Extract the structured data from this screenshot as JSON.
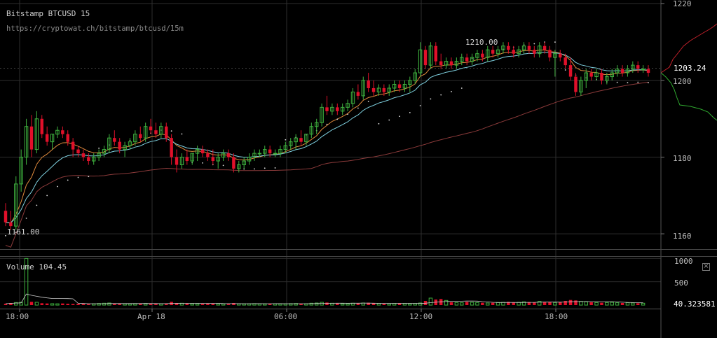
{
  "header": {
    "title": "Bitstamp BTCUSD 15",
    "url": "https://cryptowat.ch/bitstamp/btcusd/15m"
  },
  "volume_panel": {
    "label": "Volume",
    "value": "104.45",
    "close_symbol": "×"
  },
  "colors": {
    "background": "#000000",
    "up": "#3fb33f",
    "down": "#e0102a",
    "grid": "#2e2e2e",
    "ema_fast": "#e08a3c",
    "ema_slow": "#7fd1e0",
    "ma_long": "#8b3a3a",
    "dots": "#dddddd"
  },
  "chart_data": [
    {
      "type": "candlestick",
      "title": "Bitstamp BTCUSD 15",
      "price_axis": {
        "ticks": [
          "1220",
          "1200",
          "1180",
          "1160"
        ],
        "ylim": [
          1156,
          1221
        ],
        "current_price_label": "1203.24"
      },
      "time_axis": {
        "ticks": [
          "18:00",
          "Apr 18",
          "06:00",
          "12:00",
          "18:00"
        ]
      },
      "annotations": {
        "high_label": "1210.00",
        "low_label": "1161.00"
      },
      "grid": true,
      "candles_ohlc": [
        [
          1166,
          1168,
          1162,
          1163
        ],
        [
          1163,
          1166,
          1161,
          1162
        ],
        [
          1162,
          1175,
          1161,
          1173
        ],
        [
          1173,
          1182,
          1171,
          1180
        ],
        [
          1180,
          1190,
          1178,
          1188
        ],
        [
          1188,
          1191,
          1180,
          1182
        ],
        [
          1182,
          1192,
          1181,
          1190
        ],
        [
          1190,
          1191,
          1185,
          1186
        ],
        [
          1186,
          1188,
          1183,
          1184
        ],
        [
          1184,
          1186,
          1182,
          1186
        ],
        [
          1186,
          1188,
          1185,
          1187
        ],
        [
          1187,
          1188,
          1185,
          1186
        ],
        [
          1186,
          1187,
          1183,
          1184
        ],
        [
          1184,
          1185,
          1180,
          1182
        ],
        [
          1182,
          1183,
          1180,
          1181
        ],
        [
          1181,
          1182,
          1179,
          1180
        ],
        [
          1180,
          1181,
          1178,
          1179
        ],
        [
          1179,
          1181,
          1178,
          1180
        ],
        [
          1180,
          1182,
          1179,
          1181
        ],
        [
          1181,
          1183,
          1180,
          1182
        ],
        [
          1182,
          1186,
          1181,
          1185
        ],
        [
          1185,
          1187,
          1183,
          1184
        ],
        [
          1184,
          1185,
          1181,
          1182
        ],
        [
          1182,
          1184,
          1180,
          1183
        ],
        [
          1183,
          1185,
          1182,
          1184
        ],
        [
          1184,
          1187,
          1183,
          1186
        ],
        [
          1186,
          1188,
          1184,
          1185
        ],
        [
          1185,
          1189,
          1184,
          1188
        ],
        [
          1188,
          1190,
          1186,
          1187
        ],
        [
          1187,
          1189,
          1185,
          1186
        ],
        [
          1186,
          1189,
          1185,
          1188
        ],
        [
          1188,
          1189,
          1184,
          1185
        ],
        [
          1185,
          1186,
          1178,
          1180
        ],
        [
          1180,
          1182,
          1176,
          1178
        ],
        [
          1178,
          1181,
          1177,
          1180
        ],
        [
          1180,
          1182,
          1178,
          1179
        ],
        [
          1179,
          1181,
          1178,
          1181
        ],
        [
          1181,
          1183,
          1179,
          1182
        ],
        [
          1182,
          1183,
          1180,
          1181
        ],
        [
          1181,
          1182,
          1179,
          1180
        ],
        [
          1180,
          1182,
          1178,
          1179
        ],
        [
          1179,
          1181,
          1177,
          1180
        ],
        [
          1180,
          1182,
          1179,
          1181
        ],
        [
          1181,
          1182,
          1179,
          1180
        ],
        [
          1180,
          1181,
          1176,
          1177
        ],
        [
          1177,
          1179,
          1176,
          1178
        ],
        [
          1178,
          1180,
          1177,
          1179
        ],
        [
          1179,
          1181,
          1178,
          1180
        ],
        [
          1180,
          1182,
          1179,
          1181
        ],
        [
          1181,
          1182,
          1180,
          1181
        ],
        [
          1181,
          1183,
          1180,
          1182
        ],
        [
          1182,
          1183,
          1180,
          1181
        ],
        [
          1181,
          1182,
          1180,
          1181
        ],
        [
          1181,
          1183,
          1180,
          1182
        ],
        [
          1182,
          1184,
          1181,
          1183
        ],
        [
          1183,
          1185,
          1182,
          1184
        ],
        [
          1184,
          1186,
          1182,
          1185
        ],
        [
          1185,
          1187,
          1183,
          1184
        ],
        [
          1184,
          1186,
          1183,
          1186
        ],
        [
          1186,
          1189,
          1185,
          1188
        ],
        [
          1188,
          1190,
          1186,
          1189
        ],
        [
          1189,
          1194,
          1188,
          1193
        ],
        [
          1193,
          1196,
          1191,
          1192
        ],
        [
          1192,
          1194,
          1191,
          1193
        ],
        [
          1193,
          1194,
          1191,
          1192
        ],
        [
          1192,
          1194,
          1191,
          1193
        ],
        [
          1193,
          1195,
          1192,
          1194
        ],
        [
          1194,
          1198,
          1193,
          1197
        ],
        [
          1197,
          1199,
          1195,
          1196
        ],
        [
          1196,
          1201,
          1195,
          1200
        ],
        [
          1200,
          1202,
          1197,
          1198
        ],
        [
          1198,
          1200,
          1196,
          1197
        ],
        [
          1197,
          1199,
          1196,
          1198
        ],
        [
          1198,
          1199,
          1196,
          1197
        ],
        [
          1197,
          1199,
          1196,
          1198
        ],
        [
          1198,
          1200,
          1197,
          1199
        ],
        [
          1199,
          1200,
          1197,
          1198
        ],
        [
          1198,
          1200,
          1197,
          1199
        ],
        [
          1199,
          1201,
          1197,
          1200
        ],
        [
          1200,
          1203,
          1199,
          1202
        ],
        [
          1202,
          1210,
          1201,
          1208
        ],
        [
          1208,
          1209,
          1203,
          1204
        ],
        [
          1204,
          1210,
          1203,
          1209
        ],
        [
          1209,
          1210,
          1204,
          1205
        ],
        [
          1205,
          1207,
          1203,
          1204
        ],
        [
          1204,
          1206,
          1203,
          1205
        ],
        [
          1205,
          1206,
          1203,
          1204
        ],
        [
          1204,
          1206,
          1203,
          1205
        ],
        [
          1205,
          1207,
          1204,
          1206
        ],
        [
          1206,
          1207,
          1204,
          1205
        ],
        [
          1205,
          1207,
          1204,
          1206
        ],
        [
          1206,
          1208,
          1205,
          1207
        ],
        [
          1207,
          1208,
          1205,
          1206
        ],
        [
          1206,
          1209,
          1205,
          1208
        ],
        [
          1208,
          1209,
          1206,
          1207
        ],
        [
          1207,
          1209,
          1206,
          1208
        ],
        [
          1208,
          1210,
          1207,
          1209
        ],
        [
          1209,
          1210,
          1207,
          1208
        ],
        [
          1208,
          1209,
          1206,
          1207
        ],
        [
          1207,
          1209,
          1206,
          1208
        ],
        [
          1208,
          1210,
          1207,
          1209
        ],
        [
          1209,
          1210,
          1207,
          1208
        ],
        [
          1208,
          1209,
          1206,
          1207
        ],
        [
          1207,
          1210,
          1206,
          1209
        ],
        [
          1209,
          1210,
          1207,
          1208
        ],
        [
          1208,
          1209,
          1205,
          1206
        ],
        [
          1206,
          1208,
          1201,
          1207
        ],
        [
          1207,
          1208,
          1205,
          1206
        ],
        [
          1206,
          1207,
          1203,
          1204
        ],
        [
          1204,
          1206,
          1200,
          1201
        ],
        [
          1201,
          1202,
          1196,
          1197
        ],
        [
          1197,
          1201,
          1196,
          1200
        ],
        [
          1200,
          1203,
          1198,
          1202
        ],
        [
          1202,
          1203,
          1200,
          1201
        ],
        [
          1201,
          1203,
          1200,
          1202
        ],
        [
          1202,
          1203,
          1199,
          1200
        ],
        [
          1200,
          1202,
          1199,
          1201
        ],
        [
          1201,
          1203,
          1200,
          1202
        ],
        [
          1202,
          1204,
          1201,
          1203
        ],
        [
          1203,
          1204,
          1201,
          1202
        ],
        [
          1202,
          1204,
          1201,
          1203
        ],
        [
          1203,
          1205,
          1202,
          1204
        ],
        [
          1204,
          1205,
          1202,
          1203
        ],
        [
          1203,
          1204,
          1202,
          1203
        ],
        [
          1203,
          1204,
          1201,
          1202
        ]
      ],
      "volume": {
        "ticks": [
          "1000",
          "500"
        ],
        "ylim": [
          0,
          1050
        ],
        "current_volume_label": "40.323581",
        "values": [
          30,
          45,
          55,
          60,
          1000,
          70,
          60,
          40,
          35,
          30,
          28,
          35,
          30,
          25,
          30,
          28,
          25,
          30,
          35,
          40,
          45,
          35,
          30,
          30,
          28,
          32,
          30,
          35,
          30,
          28,
          30,
          35,
          70,
          45,
          40,
          35,
          30,
          30,
          28,
          30,
          32,
          30,
          28,
          25,
          45,
          30,
          28,
          30,
          32,
          30,
          28,
          30,
          30,
          28,
          30,
          32,
          35,
          30,
          30,
          40,
          45,
          60,
          55,
          40,
          35,
          30,
          30,
          40,
          35,
          45,
          50,
          40,
          35,
          30,
          30,
          35,
          40,
          35,
          30,
          35,
          45,
          90,
          150,
          120,
          130,
          100,
          60,
          55,
          50,
          70,
          60,
          55,
          50,
          45,
          50,
          55,
          60,
          70,
          55,
          60,
          70,
          65,
          60,
          80,
          65,
          60,
          55,
          60,
          90,
          110,
          100,
          80,
          70,
          60,
          55,
          50,
          55,
          60,
          50,
          45,
          50,
          45,
          40,
          40
        ]
      }
    }
  ]
}
